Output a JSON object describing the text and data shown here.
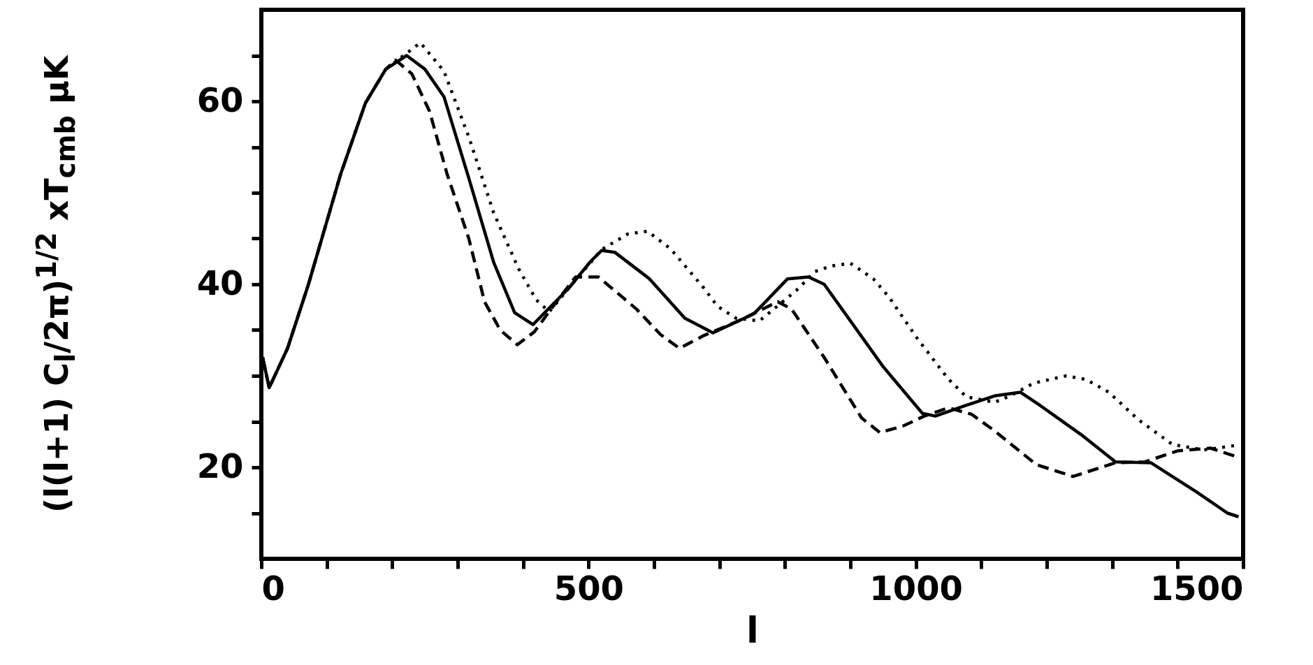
{
  "chart_data": {
    "type": "line",
    "xlabel": "l",
    "ylabel": "(l(l+1) C$_{l}$/2π)$^{1/2}$ xT$_{cmb}$ μK",
    "xlim": [
      0,
      1500
    ],
    "ylim": [
      10,
      70
    ],
    "xticks": [
      0,
      {
        "value": 100,
        "label": null
      },
      {
        "value": 200,
        "label": null
      },
      {
        "value": 300,
        "label": null
      },
      {
        "value": 400,
        "label": null
      },
      500,
      {
        "value": 600,
        "label": null
      },
      {
        "value": 700,
        "label": null
      },
      {
        "value": 800,
        "label": null
      },
      {
        "value": 900,
        "label": null
      },
      1000,
      {
        "value": 1100,
        "label": null
      },
      {
        "value": 1200,
        "label": null
      },
      {
        "value": 1300,
        "label": null
      },
      {
        "value": 1400,
        "label": null
      },
      1500
    ],
    "yticks": [
      {
        "value": 15,
        "label": null
      },
      20,
      {
        "value": 25,
        "label": null
      },
      {
        "value": 30,
        "label": null
      },
      {
        "value": 35,
        "label": null
      },
      40,
      {
        "value": 45,
        "label": null
      },
      {
        "value": 50,
        "label": null
      },
      {
        "value": 55,
        "label": null
      },
      60,
      {
        "value": 65,
        "label": null
      }
    ],
    "series": [
      {
        "color": "#000000",
        "line_style": "dashed",
        "x": [
          2,
          12,
          40,
          72,
          121,
          159,
          190,
          205,
          230,
          257,
          284,
          317,
          341,
          365,
          391,
          417,
          450,
          480,
          515,
          545,
          573,
          610,
          639,
          676,
          729,
          789,
          810,
          860,
          917,
          945,
          980,
          1013,
          1050,
          1085,
          1120,
          1184,
          1240,
          1305,
          1350,
          1400,
          1450,
          1493
        ],
        "values": [
          32,
          28.7,
          33,
          40,
          52,
          59.8,
          63.5,
          64.5,
          63,
          58.9,
          52,
          45,
          38.1,
          35,
          33.4,
          34.8,
          38,
          40.8,
          40.8,
          39,
          37.3,
          34.5,
          33,
          34.4,
          36,
          38.1,
          37.3,
          32,
          25.4,
          23.8,
          24.5,
          25.6,
          26.5,
          25.8,
          24,
          20.3,
          19,
          20.5,
          20.6,
          21.8,
          22.1,
          21.1
        ]
      },
      {
        "color": "#000000",
        "line_style": "solid",
        "x": [
          2,
          12,
          40,
          72,
          121,
          159,
          190,
          222,
          250,
          279,
          317,
          355,
          387,
          415,
          470,
          503,
          520,
          540,
          593,
          647,
          690,
          753,
          804,
          836,
          860,
          900,
          950,
          1010,
          1030,
          1074,
          1120,
          1160,
          1191,
          1252,
          1305,
          1359,
          1429,
          1476,
          1493
        ],
        "values": [
          32,
          28.7,
          33,
          40,
          52,
          59.8,
          63.5,
          65,
          63.5,
          60.5,
          51.6,
          42.4,
          36.9,
          35.6,
          39.6,
          42.5,
          43.7,
          43.5,
          40.6,
          36.3,
          34.7,
          36.8,
          40.6,
          40.8,
          40,
          36,
          31,
          25.9,
          25.6,
          26.7,
          27.8,
          28.2,
          26.7,
          23.6,
          20.6,
          20.5,
          17.3,
          15,
          14.6
        ]
      },
      {
        "color": "#000000",
        "line_style": "dotted",
        "x": [
          2,
          12,
          40,
          72,
          121,
          159,
          190,
          243,
          279,
          317,
          355,
          393,
          420,
          440,
          470,
          520,
          560,
          590,
          625,
          676,
          697,
          725,
          761,
          817,
          846,
          871,
          900,
          935,
          959,
          1002,
          1049,
          1077,
          1120,
          1144,
          1180,
          1230,
          1260,
          1295,
          1340,
          1392,
          1440,
          1490
        ],
        "values": [
          32,
          28.7,
          33,
          40,
          52,
          59.8,
          63.5,
          66.4,
          63.3,
          56.1,
          47.8,
          41.7,
          38.3,
          37,
          39.6,
          43.8,
          45.5,
          45.8,
          43.9,
          39.6,
          37.6,
          36.3,
          36,
          39.3,
          41.4,
          42,
          42.3,
          40.6,
          38.6,
          34.1,
          29.7,
          27.7,
          27.1,
          27.8,
          29.2,
          30,
          29.6,
          28.2,
          25.2,
          22.5,
          21.9,
          22.4
        ]
      }
    ]
  }
}
